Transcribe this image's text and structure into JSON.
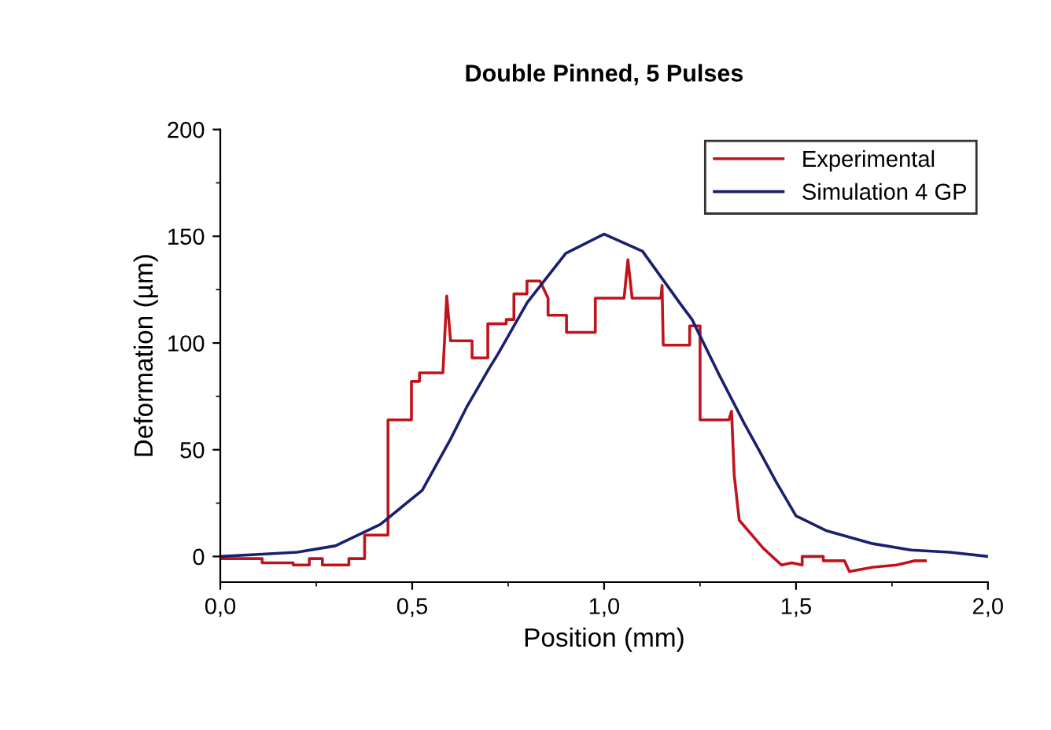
{
  "chart_data": {
    "type": "line",
    "title": "Double Pinned, 5 Pulses",
    "xlabel": "Position (mm)",
    "ylabel": "Deformation (µm)",
    "xlim": [
      0,
      2
    ],
    "ylim": [
      -12,
      200
    ],
    "xticks": [
      {
        "value": 0,
        "label": "0,0"
      },
      {
        "value": 0.5,
        "label": "0,5"
      },
      {
        "value": 1,
        "label": "1,0"
      },
      {
        "value": 1.5,
        "label": "1,5"
      },
      {
        "value": 2,
        "label": "2,0"
      }
    ],
    "yticks": [
      0,
      50,
      100,
      150,
      200
    ],
    "grid": false,
    "legend": "top right",
    "line_style": "solid",
    "marker": "none",
    "series": [
      {
        "name": "Experimental",
        "color": "#c0141c",
        "x": [
          0,
          0.109,
          0.109,
          0.19,
          0.19,
          0.232,
          0.232,
          0.266,
          0.266,
          0.335,
          0.335,
          0.376,
          0.376,
          0.437,
          0.437,
          0.498,
          0.498,
          0.519,
          0.519,
          0.58,
          0.59,
          0.6,
          0.656,
          0.656,
          0.697,
          0.697,
          0.745,
          0.745,
          0.765,
          0.765,
          0.799,
          0.799,
          0.833,
          0.854,
          0.854,
          0.902,
          0.902,
          0.915,
          0.915,
          0.977,
          0.977,
          1.052,
          1.062,
          1.073,
          1.148,
          1.151,
          1.154,
          1.223,
          1.223,
          1.25,
          1.25,
          1.325,
          1.332,
          1.339,
          1.352,
          1.352,
          1.414,
          1.414,
          1.462,
          1.462,
          1.489,
          1.516,
          1.516,
          1.571,
          1.571,
          1.626,
          1.639,
          1.639,
          1.701,
          1.701,
          1.762,
          1.762,
          1.81,
          1.837
        ],
        "values": [
          -1,
          -1,
          -3,
          -3,
          -4,
          -4,
          -1,
          -1,
          -4,
          -4,
          -1,
          -1,
          10,
          10,
          64,
          64,
          82,
          82,
          86,
          86,
          122,
          101,
          101,
          93,
          93,
          109,
          109,
          111,
          111,
          123,
          123,
          129,
          129,
          121,
          113,
          113,
          105,
          105,
          105,
          105,
          121,
          121,
          139,
          121,
          121,
          127,
          99,
          99,
          108,
          108,
          64,
          64,
          68,
          38,
          17,
          17,
          4,
          4,
          -4,
          -4,
          -3,
          -4,
          0,
          0,
          -2,
          -2,
          -7,
          -7,
          -5,
          -5,
          -4,
          -4,
          -2,
          -2
        ]
      },
      {
        "name": "Simulation 4 GP",
        "color": "#1a1f6e",
        "x": [
          0,
          0.1,
          0.2,
          0.3,
          0.417,
          0.526,
          0.6,
          0.642,
          0.7,
          0.724,
          0.8,
          0.9,
          1.0,
          1.1,
          1.2,
          1.229,
          1.3,
          1.366,
          1.4,
          1.448,
          1.5,
          1.58,
          1.7,
          1.8,
          1.9,
          2.0
        ],
        "values": [
          0,
          1,
          2,
          5,
          15,
          31,
          55,
          70,
          88,
          95,
          119,
          142,
          151,
          143,
          118,
          111,
          85,
          62,
          51,
          35,
          19,
          12,
          6,
          3,
          2,
          0
        ]
      }
    ]
  }
}
